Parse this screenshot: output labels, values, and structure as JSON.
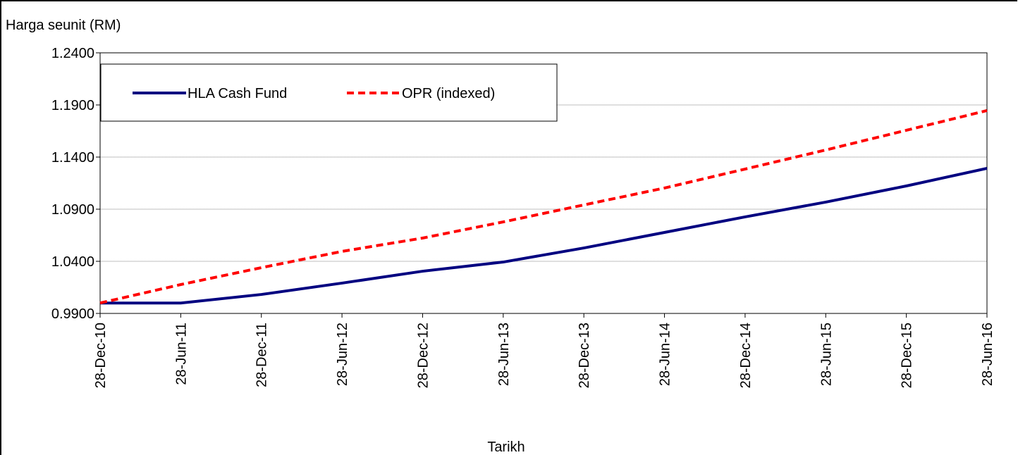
{
  "chart_data": {
    "type": "line",
    "y_label": "Harga seunit (RM)",
    "x_label": "Tarikh",
    "x": [
      "28-Dec-10",
      "28-Jun-11",
      "28-Dec-11",
      "28-Jun-12",
      "28-Dec-12",
      "28-Jun-13",
      "28-Dec-13",
      "28-Jun-14",
      "28-Dec-14",
      "28-Jun-15",
      "28-Dec-15",
      "28-Jun-16"
    ],
    "series": [
      {
        "name": "HLA Cash Fund",
        "color": "#000080",
        "dash": false,
        "values": [
          1.0,
          1.0,
          1.0082,
          1.0191,
          1.0305,
          1.0393,
          1.0528,
          1.0677,
          1.0826,
          1.0968,
          1.1123,
          1.1292
        ]
      },
      {
        "name": "OPR (indexed)",
        "color": "#ff0000",
        "dash": true,
        "values": [
          1.0,
          1.0177,
          1.0339,
          1.0495,
          1.0623,
          1.0778,
          1.0941,
          1.1103,
          1.1285,
          1.1468,
          1.1657,
          1.1846
        ]
      }
    ],
    "ylim": [
      0.99,
      1.24
    ],
    "yticks": [
      {
        "value": 0.99,
        "label": "0.9900"
      },
      {
        "value": 1.04,
        "label": "1.0400"
      },
      {
        "value": 1.09,
        "label": "1.0900"
      },
      {
        "value": 1.14,
        "label": "1.1400"
      },
      {
        "value": 1.19,
        "label": "1.1900"
      },
      {
        "value": 1.24,
        "label": "1.2400"
      }
    ],
    "grid": true,
    "legend": "top-left"
  }
}
